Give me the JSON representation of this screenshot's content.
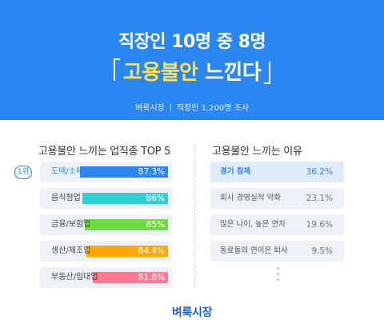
{
  "header": {
    "line1": "직장인 10명 중 8명",
    "highlight": "고용불안",
    "rest": " 느낀다",
    "source_name": "벼룩시장",
    "source_detail": "직장인 1,200명 조사"
  },
  "colors": {
    "header_bg": "#2a86f0",
    "highlight": "#ffe14d",
    "accent": "#2a86f0",
    "row_bg": "#eef1f5"
  },
  "chart_data": [
    {
      "type": "bar",
      "title": "고용불안 느끼는 업직종 TOP 5",
      "rank_badge": "1위",
      "categories": [
        "도매/소매업",
        "음식점업",
        "금융/보험업",
        "생산/제조업",
        "부동산/임대업"
      ],
      "values": [
        87.3,
        86,
        85,
        84.4,
        81.8
      ],
      "value_labels": [
        "87.3%",
        "86%",
        "85%",
        "84.4%",
        "81.8%"
      ],
      "colors": [
        "#2a86f0",
        "#2fd0d4",
        "#6edb3f",
        "#ffa800",
        "#ff7b93"
      ],
      "xlim": [
        50,
        100
      ]
    },
    {
      "type": "table",
      "title": "고용불안 느끼는 이유",
      "categories": [
        "경기 침체",
        "회사 경영실적 악화",
        "많은 나이, 높은 연차",
        "동료들의 연이은 퇴사"
      ],
      "values": [
        36.2,
        23.1,
        19.6,
        9.5
      ],
      "value_labels": [
        "36.2%",
        "23.1%",
        "19.6%",
        "9.5%"
      ]
    }
  ],
  "footer": {
    "brand": "벼룩시장"
  }
}
